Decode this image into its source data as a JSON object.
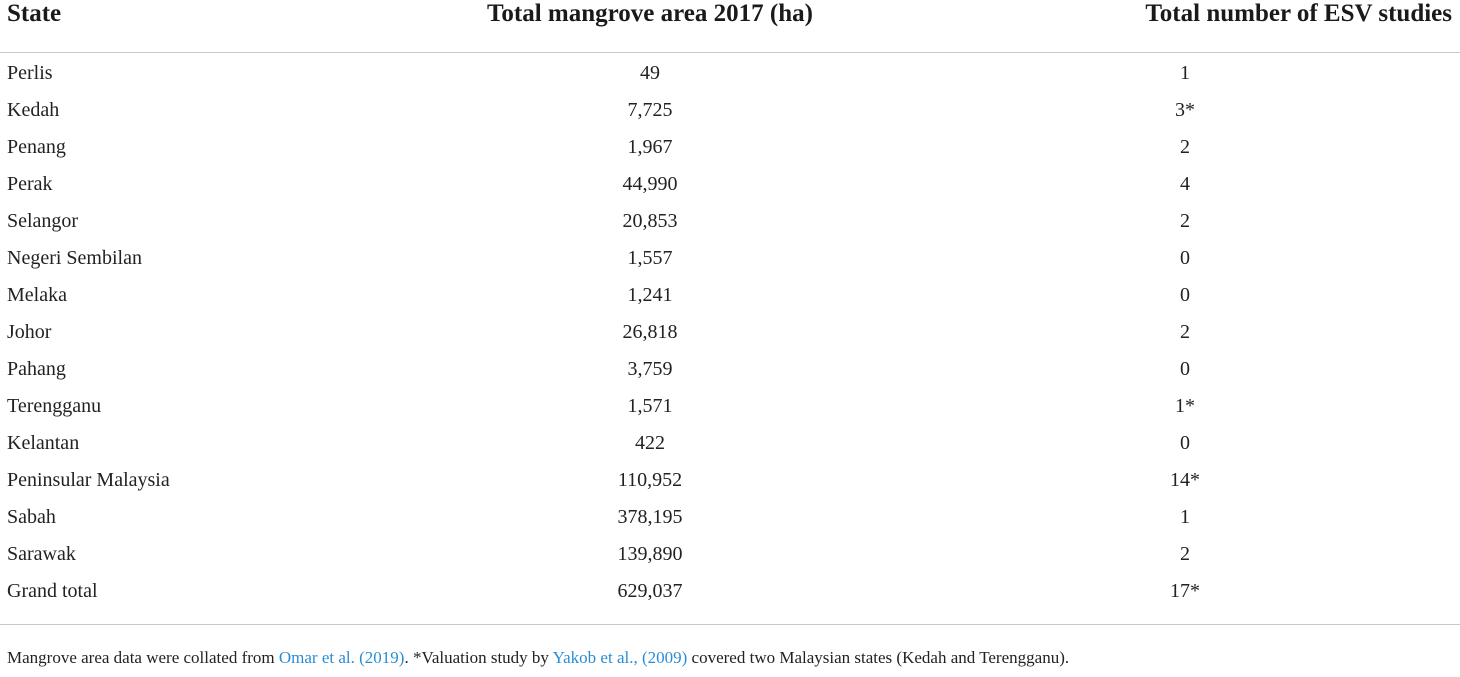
{
  "table": {
    "headers": [
      "State",
      "Total mangrove area 2017 (ha)",
      "Total number of ESV studies"
    ],
    "rows": [
      [
        "Perlis",
        "49",
        "1"
      ],
      [
        "Kedah",
        "7,725",
        "3*"
      ],
      [
        "Penang",
        "1,967",
        "2"
      ],
      [
        "Perak",
        "44,990",
        "4"
      ],
      [
        "Selangor",
        "20,853",
        "2"
      ],
      [
        "Negeri Sembilan",
        "1,557",
        "0"
      ],
      [
        "Melaka",
        "1,241",
        "0"
      ],
      [
        "Johor",
        "26,818",
        "2"
      ],
      [
        "Pahang",
        "3,759",
        "0"
      ],
      [
        "Terengganu",
        "1,571",
        "1*"
      ],
      [
        "Kelantan",
        "422",
        "0"
      ],
      [
        "Peninsular Malaysia",
        "110,952",
        "14*"
      ],
      [
        "Sabah",
        "378,195",
        "1"
      ],
      [
        "Sarawak",
        "139,890",
        "2"
      ],
      [
        "Grand total",
        "629,037",
        "17*"
      ]
    ]
  },
  "footnote": {
    "text1": "Mangrove area data were collated from ",
    "link1": "Omar et al. (2019)",
    "text2": ". *Valuation study by ",
    "link2": "Yakob et al., (2009)",
    "text3": " covered two Malaysian states (Kedah and Terengganu).",
    "link_color": "#2a8dd4"
  }
}
